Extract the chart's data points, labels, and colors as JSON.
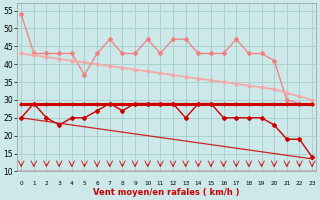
{
  "x": [
    0,
    1,
    2,
    3,
    4,
    5,
    6,
    7,
    8,
    9,
    10,
    11,
    12,
    13,
    14,
    15,
    16,
    17,
    18,
    19,
    20,
    21,
    22,
    23
  ],
  "pink_jagged": [
    54,
    43,
    43,
    43,
    43,
    37,
    43,
    47,
    43,
    43,
    47,
    43,
    47,
    47,
    43,
    43,
    43,
    47,
    43,
    43,
    41,
    30,
    29,
    29
  ],
  "pink_trend": [
    43,
    42.5,
    42,
    41.5,
    41,
    40.5,
    40,
    39.5,
    39,
    38.5,
    38,
    37.5,
    37,
    36.5,
    36,
    35.5,
    35,
    34.5,
    34,
    33.5,
    33,
    32,
    31,
    30
  ],
  "red_flat": [
    29,
    29,
    29,
    29,
    29,
    29,
    29,
    29,
    29,
    29,
    29,
    29,
    29,
    29,
    29,
    29,
    29,
    29,
    29,
    29,
    29,
    29,
    29,
    29
  ],
  "red_jagged": [
    25,
    29,
    25,
    23,
    25,
    25,
    27,
    29,
    27,
    29,
    29,
    29,
    29,
    25,
    29,
    29,
    25,
    25,
    25,
    25,
    23,
    19,
    19,
    14
  ],
  "red_diagonal": [
    25,
    24.5,
    24,
    23.5,
    23,
    22.5,
    22,
    21.5,
    21,
    20.5,
    20,
    19.5,
    19,
    18.5,
    18,
    17.5,
    17,
    16.5,
    16,
    15.5,
    15,
    14.5,
    14,
    13.5
  ],
  "background_color": "#cce8e8",
  "grid_color": "#aad0d0",
  "pink_color": "#f08080",
  "pink_light": "#f4a8a8",
  "red_color": "#cc0000",
  "xlabel": "Vent moyen/en rafales ( km/h )",
  "ylim": [
    10,
    57
  ],
  "yticks": [
    10,
    15,
    20,
    25,
    30,
    35,
    40,
    45,
    50,
    55
  ]
}
